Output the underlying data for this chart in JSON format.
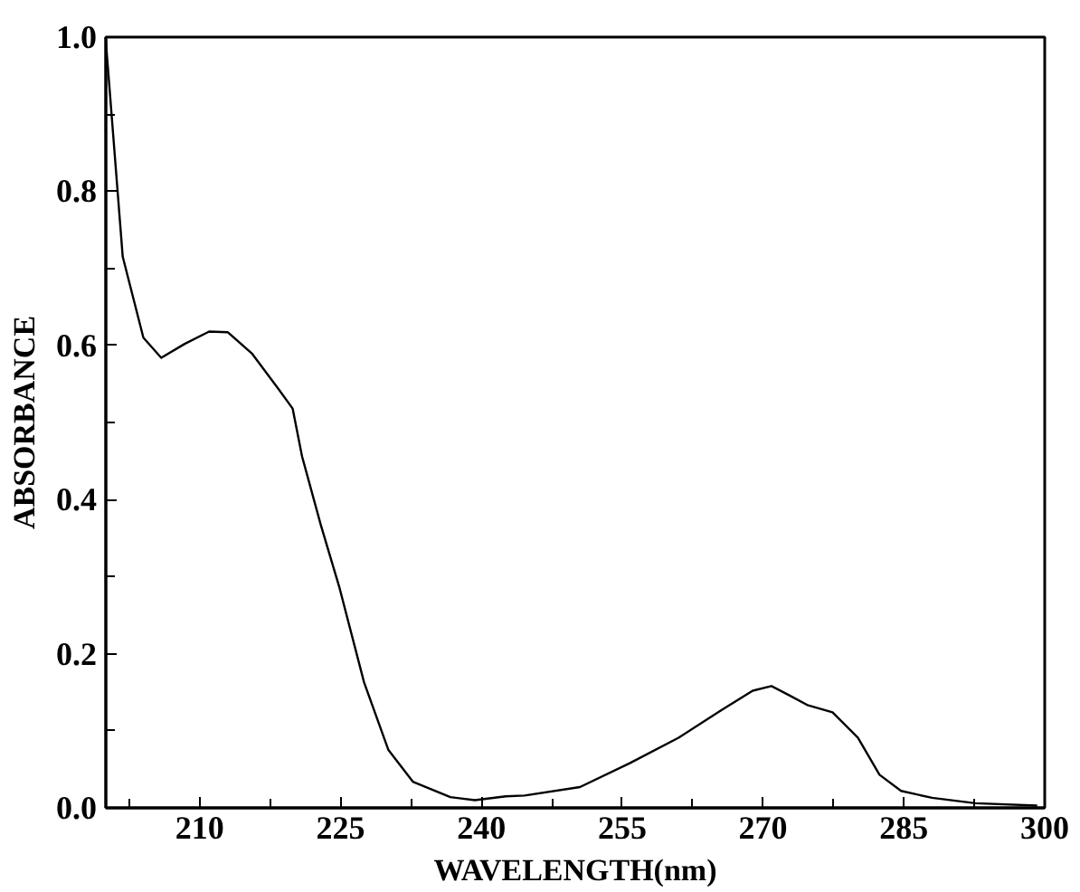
{
  "chart_data": {
    "type": "line",
    "xlabel": "WAVELENGTH(nm)",
    "ylabel": "ABSORBANCE",
    "x": [
      200,
      201.8,
      204.0,
      205.9,
      208.4,
      211.0,
      213.0,
      215.6,
      218.3,
      219.9,
      220.9,
      222.9,
      224.9,
      227.5,
      230.1,
      232.7,
      236.7,
      239.3,
      242.6,
      244.6,
      250.5,
      255.8,
      261.0,
      265.6,
      268.9,
      270.9,
      272.8,
      274.8,
      277.4,
      280.1,
      282.4,
      284.7,
      288.0,
      292.6,
      299.2
    ],
    "series": [
      {
        "color": "#000000",
        "values": [
          0.995,
          0.715,
          0.61,
          0.584,
          0.602,
          0.618,
          0.617,
          0.589,
          0.545,
          0.518,
          0.456,
          0.367,
          0.285,
          0.163,
          0.075,
          0.034,
          0.014,
          0.01,
          0.015,
          0.016,
          0.027,
          0.058,
          0.091,
          0.127,
          0.152,
          0.158,
          0.146,
          0.133,
          0.124,
          0.091,
          0.043,
          0.022,
          0.013,
          0.006,
          0.003
        ]
      }
    ],
    "xlim": [
      200,
      300
    ],
    "xticks": [
      {
        "value": 202.5,
        "label": null
      },
      210,
      {
        "value": 217.5,
        "label": null
      },
      225,
      {
        "value": 232.5,
        "label": null
      },
      240,
      {
        "value": 247.5,
        "label": null
      },
      255,
      {
        "value": 262.5,
        "label": null
      },
      270,
      {
        "value": 277.5,
        "label": null
      },
      285,
      {
        "value": 292.5,
        "label": null
      },
      300
    ],
    "ylim": [
      0,
      1
    ],
    "yticks": [
      {
        "value": 0,
        "label": "0.0"
      },
      {
        "value": 0.1,
        "label": null
      },
      {
        "value": 0.2,
        "label": "0.2"
      },
      {
        "value": 0.3,
        "label": null
      },
      {
        "value": 0.4,
        "label": "0.4"
      },
      {
        "value": 0.5,
        "label": null
      },
      {
        "value": 0.6,
        "label": "0.6"
      },
      {
        "value": 0.7,
        "label": null
      },
      {
        "value": 0.8,
        "label": "0.8"
      },
      {
        "value": 0.9,
        "label": null
      },
      {
        "value": 1,
        "label": "1.0"
      }
    ],
    "grid": false,
    "marker": "none",
    "line_style": "solid"
  }
}
